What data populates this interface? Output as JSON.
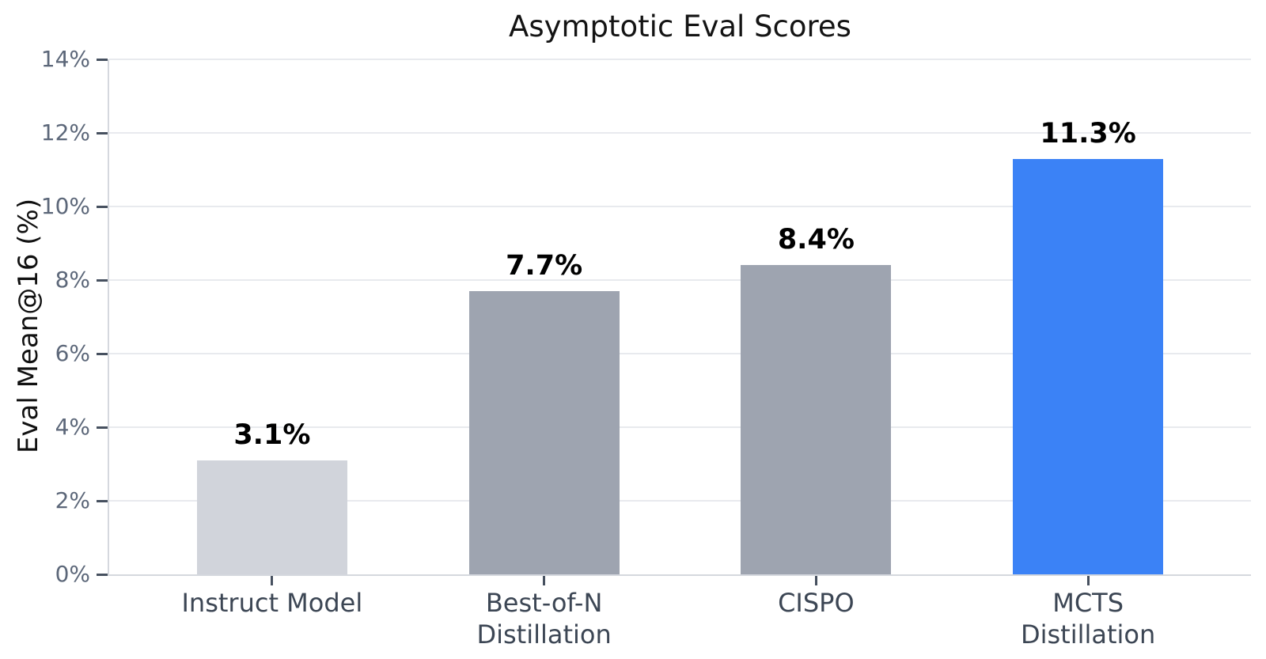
{
  "chart_data": {
    "type": "bar",
    "title": "Asymptotic Eval Scores",
    "ylabel": "Eval Mean@16 (%)",
    "xlabel": "",
    "categories": [
      "Instruct Model",
      "Best-of-N\nDistillation",
      "CISPO",
      "MCTS\nDistillation"
    ],
    "values": [
      3.1,
      7.7,
      8.4,
      11.3
    ],
    "value_labels": [
      "3.1%",
      "7.7%",
      "8.4%",
      "11.3%"
    ],
    "bar_colors": [
      "#d1d4db",
      "#9ea4b0",
      "#9ea4b0",
      "#3b82f6"
    ],
    "ylim": [
      0,
      14
    ],
    "ytick_step": 2,
    "ytick_labels": [
      "0%",
      "2%",
      "4%",
      "6%",
      "8%",
      "10%",
      "12%",
      "14%"
    ],
    "grid": true,
    "legend": null,
    "colors": {
      "background": "#ffffff",
      "grid": "#e8eaee",
      "spine": "#d5d8de",
      "tick": "#46505f",
      "ytick_label": "#5c6779",
      "xtick_label": "#3c4654",
      "value_label": "#000000",
      "title": "#141414",
      "accent_blue": "#3b82f6"
    }
  }
}
